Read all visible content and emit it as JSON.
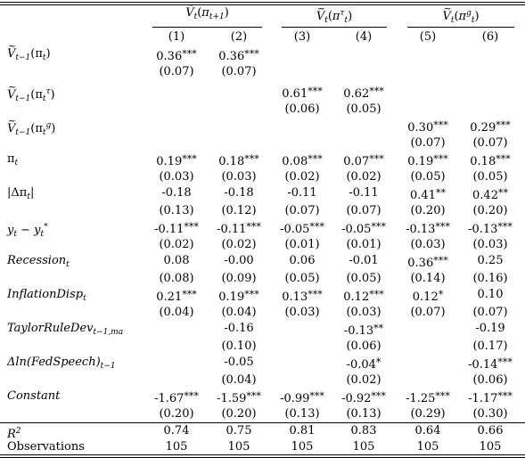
{
  "col_groups": [
    {
      "var": "V",
      "arg": "π",
      "sup": "",
      "sub": "t+1"
    },
    {
      "var": "V",
      "arg": "π",
      "sup": "τ",
      "sub": "t"
    },
    {
      "var": "V",
      "arg": "π",
      "sup": "g",
      "sub": "t"
    }
  ],
  "col_numbers": [
    "(1)",
    "(2)",
    "(3)",
    "(4)",
    "(5)",
    "(6)"
  ],
  "rows": [
    {
      "label": "Ṽ_{t−1}(π_t)",
      "coef": [
        "0.36***",
        "0.36***",
        "",
        "",
        "",
        ""
      ],
      "se": [
        "(0.07)",
        "(0.07)",
        "",
        "",
        "",
        ""
      ]
    },
    {
      "label": "Ṽ_{t−1}(π_t^τ)",
      "coef": [
        "",
        "",
        "0.61***",
        "0.62***",
        "",
        ""
      ],
      "se": [
        "",
        "",
        "(0.06)",
        "(0.05)",
        "",
        ""
      ]
    },
    {
      "label": "Ṽ_{t−1}(π_t^g)",
      "coef": [
        "",
        "",
        "",
        "",
        "0.30***",
        "0.29***"
      ],
      "se": [
        "",
        "",
        "",
        "",
        "(0.07)",
        "(0.07)"
      ]
    },
    {
      "label": "π_t",
      "coef": [
        "0.19***",
        "0.18***",
        "0.08***",
        "0.07***",
        "0.19***",
        "0.18***"
      ],
      "se": [
        "(0.03)",
        "(0.03)",
        "(0.02)",
        "(0.02)",
        "(0.05)",
        "(0.05)"
      ]
    },
    {
      "label": "|Δπ_t|",
      "coef": [
        "-0.18",
        "-0.18",
        "-0.11",
        "-0.11",
        "0.41**",
        "0.42**"
      ],
      "se": [
        "(0.13)",
        "(0.12)",
        "(0.07)",
        "(0.07)",
        "(0.20)",
        "(0.20)"
      ]
    },
    {
      "label": "y_t − y_t^*",
      "coef": [
        "-0.11***",
        "-0.11***",
        "-0.05***",
        "-0.05***",
        "-0.13***",
        "-0.13***"
      ],
      "se": [
        "(0.02)",
        "(0.02)",
        "(0.01)",
        "(0.01)",
        "(0.03)",
        "(0.03)"
      ]
    },
    {
      "label": "Recession_t",
      "coef": [
        "0.08",
        "-0.00",
        "0.06",
        "-0.01",
        "0.36***",
        "0.25"
      ],
      "se": [
        "(0.08)",
        "(0.09)",
        "(0.05)",
        "(0.05)",
        "(0.14)",
        "(0.16)"
      ]
    },
    {
      "label": "InflationDisp_t",
      "coef": [
        "0.21***",
        "0.19***",
        "0.13***",
        "0.12***",
        "0.12*",
        "0.10"
      ],
      "se": [
        "(0.04)",
        "(0.04)",
        "(0.03)",
        "(0.03)",
        "(0.07)",
        "(0.07)"
      ]
    },
    {
      "label": "TaylorRuleDev_{t−1,ma}",
      "coef": [
        "",
        "-0.16",
        "",
        "-0.13**",
        "",
        "-0.19"
      ],
      "se": [
        "",
        "(0.10)",
        "",
        "(0.06)",
        "",
        "(0.17)"
      ]
    },
    {
      "label": "Δln(FedSpeech)_{t−1}",
      "coef": [
        "",
        "-0.05",
        "",
        "-0.04*",
        "",
        "-0.14***"
      ],
      "se": [
        "",
        "(0.04)",
        "",
        "(0.02)",
        "",
        "(0.06)"
      ]
    },
    {
      "label": "Constant",
      "coef": [
        "-1.67***",
        "-1.59***",
        "-0.99***",
        "-0.92***",
        "-1.25***",
        "-1.17***"
      ],
      "se": [
        "(0.20)",
        "(0.20)",
        "(0.13)",
        "(0.13)",
        "(0.29)",
        "(0.30)"
      ]
    }
  ],
  "r2_label": "R^2",
  "r2": [
    "0.74",
    "0.75",
    "0.81",
    "0.83",
    "0.64",
    "0.66"
  ],
  "obs_label": "Observations",
  "obs": [
    "105",
    "105",
    "105",
    "105",
    "105",
    "105"
  ]
}
